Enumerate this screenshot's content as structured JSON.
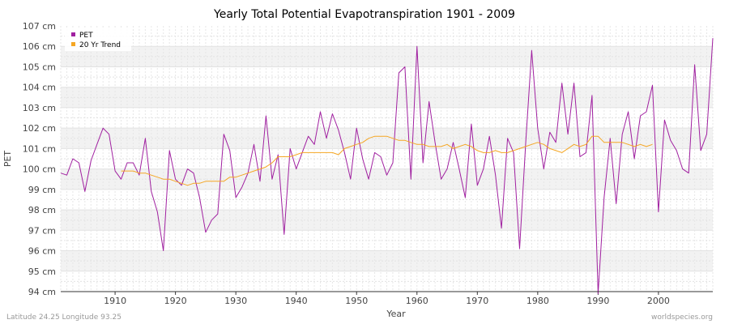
{
  "chart_data": {
    "type": "line",
    "title": "Yearly Total Potential Evapotranspiration 1901 - 2009",
    "xlabel": "Year",
    "ylabel": "PET",
    "xlim": [
      1901,
      2009
    ],
    "ylim": [
      94,
      107
    ],
    "x_ticks": [
      1910,
      1920,
      1930,
      1940,
      1950,
      1960,
      1970,
      1980,
      1990,
      2000
    ],
    "y_ticks": [
      "94 cm",
      "95 cm",
      "96 cm",
      "97 cm",
      "98 cm",
      "99 cm",
      "100 cm",
      "101 cm",
      "102 cm",
      "103 cm",
      "104 cm",
      "105 cm",
      "106 cm",
      "107 cm"
    ],
    "grid": true,
    "legend_position": "top-left",
    "series": [
      {
        "name": "PET",
        "color": "#a020a0",
        "x_start": 1901,
        "values": [
          99.8,
          99.7,
          100.5,
          100.3,
          98.9,
          100.4,
          101.2,
          102.0,
          101.7,
          99.9,
          99.5,
          100.3,
          100.3,
          99.7,
          101.5,
          98.9,
          97.9,
          96.0,
          100.9,
          99.5,
          99.2,
          100.0,
          99.8,
          98.6,
          96.9,
          97.5,
          97.8,
          101.7,
          100.9,
          98.6,
          99.1,
          99.8,
          101.2,
          99.4,
          102.6,
          99.5,
          100.7,
          96.8,
          101.0,
          100.0,
          100.8,
          101.6,
          101.2,
          102.8,
          101.5,
          102.7,
          101.9,
          100.8,
          99.5,
          102.0,
          100.5,
          99.5,
          100.8,
          100.6,
          99.7,
          100.3,
          104.7,
          105.0,
          99.5,
          106.0,
          100.3,
          103.3,
          101.3,
          99.5,
          100.0,
          101.3,
          100.0,
          98.6,
          102.2,
          99.2,
          100.0,
          101.6,
          99.7,
          97.1,
          101.5,
          100.8,
          96.1,
          101.2,
          105.8,
          102.0,
          100.0,
          101.8,
          101.3,
          104.2,
          101.7,
          104.2,
          100.6,
          100.8,
          103.6,
          93.9,
          98.6,
          101.5,
          98.3,
          101.7,
          102.8,
          100.5,
          102.6,
          102.8,
          104.1,
          97.9,
          102.4,
          101.4,
          100.9,
          100.0,
          99.8,
          105.1,
          100.9,
          101.7,
          106.4
        ]
      },
      {
        "name": "20 Yr Trend",
        "color": "#f5a623",
        "x_start": 1911,
        "values": [
          99.9,
          99.9,
          99.9,
          99.8,
          99.8,
          99.7,
          99.6,
          99.5,
          99.5,
          99.4,
          99.3,
          99.2,
          99.3,
          99.3,
          99.4,
          99.4,
          99.4,
          99.4,
          99.6,
          99.6,
          99.7,
          99.8,
          99.9,
          100.0,
          100.1,
          100.3,
          100.6,
          100.6,
          100.6,
          100.7,
          100.8,
          100.8,
          100.8,
          100.8,
          100.8,
          100.8,
          100.7,
          101.0,
          101.1,
          101.2,
          101.3,
          101.5,
          101.6,
          101.6,
          101.6,
          101.5,
          101.4,
          101.4,
          101.3,
          101.2,
          101.2,
          101.1,
          101.1,
          101.1,
          101.2,
          101.0,
          101.1,
          101.2,
          101.1,
          100.9,
          100.8,
          100.8,
          100.9,
          100.8,
          100.8,
          100.9,
          101.0,
          101.1,
          101.2,
          101.3,
          101.2,
          101.0,
          100.9,
          100.8,
          101.0,
          101.2,
          101.1,
          101.2,
          101.6,
          101.6,
          101.3,
          101.3,
          101.3,
          101.3,
          101.2,
          101.1,
          101.2,
          101.1,
          101.2
        ]
      }
    ]
  },
  "footer": {
    "location": "Latitude 24.25 Longitude 93.25",
    "source": "worldspecies.org"
  }
}
